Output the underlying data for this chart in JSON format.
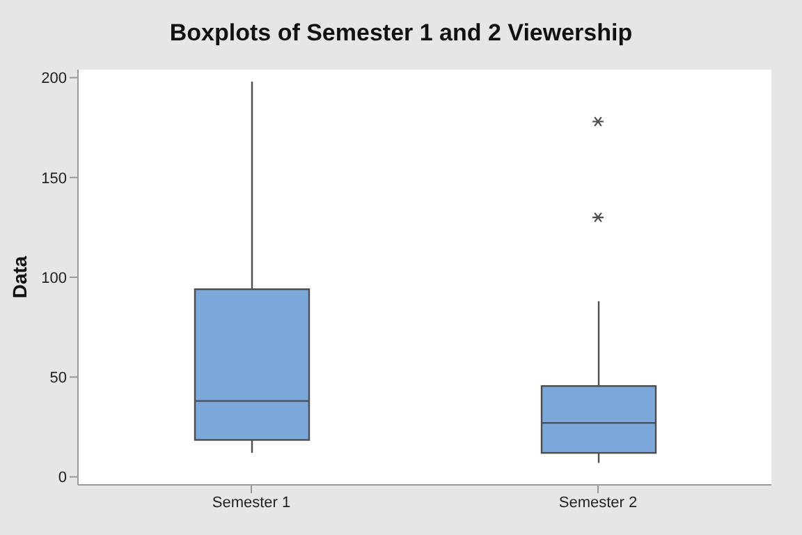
{
  "chart_data": {
    "type": "box",
    "title": "Boxplots of Semester 1 and 2 Viewership",
    "ylabel": "Data",
    "categories": [
      "Semester 1",
      "Semester 2"
    ],
    "color": "#7ba7d9",
    "boxes": [
      {
        "low": 12,
        "q1": 18.5,
        "median": 38,
        "q3": 94,
        "high": 198
      },
      {
        "low": 7,
        "q1": 12,
        "median": 27,
        "q3": 45.5,
        "high": 88,
        "outliers": [
          130,
          178
        ]
      }
    ],
    "ylim": [
      -4,
      204
    ],
    "yticks": [
      0,
      50,
      100,
      150,
      200
    ],
    "grid": false,
    "legend": false
  }
}
